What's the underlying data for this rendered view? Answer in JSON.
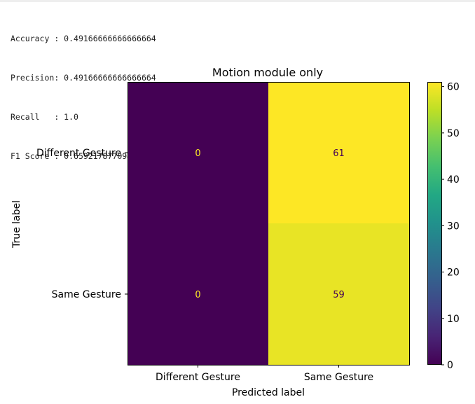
{
  "metrics": [
    {
      "label": "Accuracy ",
      "value": "0.49166666666666664"
    },
    {
      "label": "Precision",
      "value": "0.49166666666666664"
    },
    {
      "label": "Recall   ",
      "value": "1.0"
    },
    {
      "label": "F1 Score ",
      "value": "0.659217877094972"
    }
  ],
  "chart_data": {
    "type": "heatmap",
    "title": "Motion module only",
    "xlabel": "Predicted label",
    "ylabel": "True label",
    "x_categories": [
      "Different Gesture",
      "Same Gesture"
    ],
    "y_categories": [
      "Different Gesture",
      "Same Gesture"
    ],
    "values": [
      [
        0,
        61
      ],
      [
        0,
        59
      ]
    ],
    "colormap": "viridis",
    "colorbar": {
      "min": 0,
      "max": 61,
      "ticks": [
        0,
        10,
        20,
        30,
        40,
        50,
        60
      ]
    },
    "grid": false
  }
}
